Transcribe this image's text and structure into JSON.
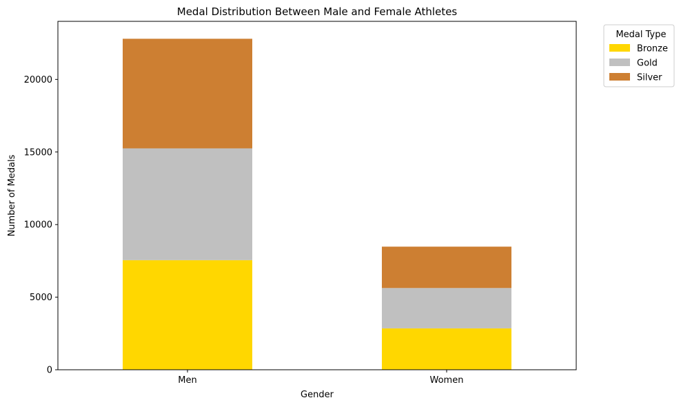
{
  "chart_data": {
    "type": "bar",
    "stacked": true,
    "title": "Medal Distribution Between Male and Female Athletes",
    "xlabel": "Gender",
    "ylabel": "Number of Medals",
    "categories": [
      "Men",
      "Women"
    ],
    "ylim": [
      0,
      24000
    ],
    "yticks": [
      0,
      5000,
      10000,
      15000,
      20000
    ],
    "ytick_labels": [
      "0",
      "5000",
      "10000",
      "15000",
      "20000"
    ],
    "grid": false,
    "legend": {
      "title": "Medal Type",
      "placement": "outside-top-right"
    },
    "series": [
      {
        "name": "Bronze",
        "color": "#FFD700",
        "values": [
          7550,
          2850
        ]
      },
      {
        "name": "Gold",
        "color": "#C0C0C0",
        "values": [
          7700,
          2780
        ]
      },
      {
        "name": "Silver",
        "color": "#CD7F32",
        "values": [
          7550,
          2850
        ]
      }
    ]
  }
}
